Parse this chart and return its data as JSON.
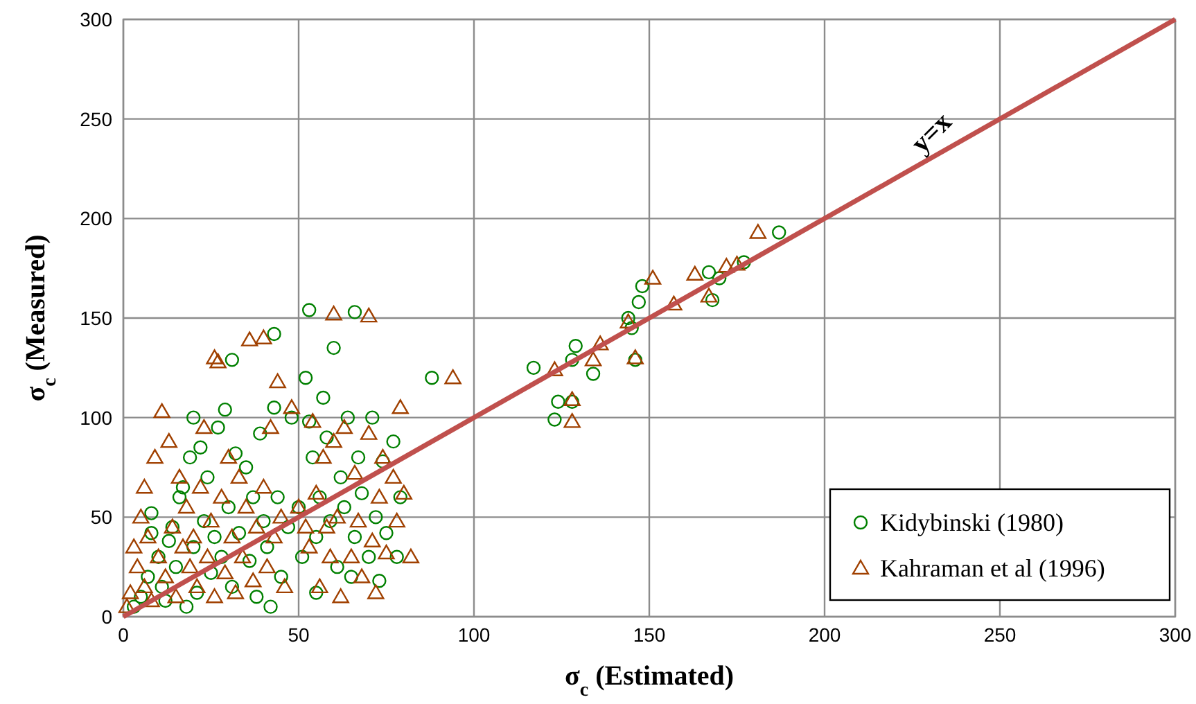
{
  "chart_data": {
    "type": "scatter",
    "xlabel": "σ$_{c}$ (Estimated)",
    "ylabel": "σ$_{c}$ (Measured)",
    "xlim": [
      0,
      300
    ],
    "ylim": [
      0,
      300
    ],
    "xticks": [
      0,
      50,
      100,
      150,
      200,
      250,
      300
    ],
    "yticks": [
      0,
      50,
      100,
      150,
      200,
      250,
      300
    ],
    "grid": true,
    "legend": "bottom right",
    "annotations": [
      {
        "text": "y=x",
        "x": 235,
        "y": 235
      }
    ],
    "series": [
      {
        "name": "Kidybinski (1980)",
        "color": "#008000",
        "marker": "circle",
        "x": [
          3,
          5,
          7,
          8,
          8,
          10,
          11,
          12,
          13,
          14,
          15,
          16,
          17,
          18,
          19,
          20,
          20,
          21,
          22,
          23,
          24,
          25,
          26,
          27,
          28,
          29,
          30,
          31,
          32,
          33,
          35,
          36,
          37,
          38,
          39,
          40,
          41,
          42,
          43,
          44,
          45,
          47,
          48,
          50,
          51,
          52,
          53,
          54,
          55,
          55,
          56,
          57,
          58,
          59,
          60,
          61,
          62,
          63,
          64,
          65,
          66,
          67,
          68,
          70,
          71,
          72,
          73,
          74,
          75,
          77,
          78,
          79,
          31,
          43,
          53,
          66,
          88,
          117,
          123,
          124,
          128,
          129,
          128,
          134,
          144,
          145,
          148,
          147,
          146,
          167,
          168,
          170,
          177,
          187
        ],
        "values": [
          5,
          10,
          20,
          42,
          52,
          30,
          15,
          8,
          38,
          45,
          25,
          60,
          65,
          5,
          80,
          35,
          100,
          12,
          85,
          48,
          70,
          22,
          40,
          95,
          30,
          104,
          55,
          15,
          82,
          42,
          75,
          28,
          60,
          10,
          92,
          48,
          35,
          5,
          105,
          60,
          20,
          45,
          100,
          55,
          30,
          120,
          98,
          80,
          40,
          12,
          60,
          110,
          90,
          48,
          135,
          25,
          70,
          55,
          100,
          20,
          40,
          80,
          62,
          30,
          100,
          50,
          18,
          78,
          42,
          88,
          30,
          60,
          129,
          142,
          154,
          153,
          120,
          125,
          99,
          108,
          108,
          136,
          129,
          122,
          150,
          145,
          166,
          158,
          129,
          173,
          159,
          170,
          178,
          193
        ]
      },
      {
        "name": "Kahraman et al (1996)",
        "color": "#a04000",
        "marker": "triangle",
        "x": [
          1,
          2,
          3,
          4,
          5,
          6,
          6,
          7,
          8,
          9,
          10,
          11,
          12,
          13,
          14,
          15,
          16,
          17,
          18,
          19,
          20,
          21,
          22,
          23,
          24,
          25,
          26,
          27,
          28,
          29,
          30,
          31,
          32,
          33,
          34,
          35,
          37,
          38,
          40,
          41,
          42,
          43,
          44,
          45,
          46,
          48,
          50,
          52,
          53,
          54,
          55,
          56,
          57,
          58,
          59,
          60,
          61,
          62,
          63,
          65,
          66,
          67,
          68,
          70,
          71,
          72,
          73,
          74,
          75,
          77,
          78,
          79,
          80,
          82,
          26,
          36,
          40,
          60,
          70,
          94,
          123,
          128,
          128,
          134,
          136,
          144,
          146,
          151,
          157,
          163,
          167,
          172,
          175,
          181
        ],
        "values": [
          5,
          12,
          35,
          25,
          50,
          15,
          65,
          40,
          8,
          80,
          30,
          103,
          20,
          88,
          45,
          10,
          70,
          35,
          55,
          25,
          40,
          15,
          65,
          95,
          30,
          48,
          10,
          128,
          60,
          22,
          80,
          40,
          12,
          70,
          30,
          55,
          18,
          45,
          65,
          25,
          95,
          40,
          118,
          50,
          15,
          105,
          55,
          45,
          35,
          98,
          62,
          15,
          80,
          45,
          30,
          88,
          50,
          10,
          95,
          30,
          72,
          48,
          20,
          92,
          38,
          12,
          60,
          80,
          32,
          70,
          48,
          105,
          62,
          30,
          130,
          139,
          140,
          152,
          151,
          120,
          124,
          109,
          98,
          129,
          137,
          148,
          130,
          170,
          157,
          172,
          161,
          176,
          177,
          193
        ]
      },
      {
        "type": "line",
        "color": "#c0504d",
        "x": [
          0,
          300
        ],
        "values": [
          0,
          300
        ]
      }
    ]
  }
}
